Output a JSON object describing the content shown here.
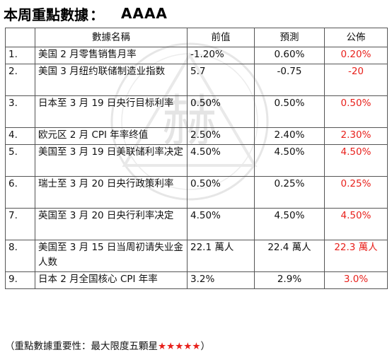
{
  "header": {
    "title": "本周重點數據",
    "separator": "：",
    "rating": "AAAA"
  },
  "watermark": {
    "glyph": "赫"
  },
  "table": {
    "columns": [
      "數據名稱",
      "前值",
      "預測",
      "公佈"
    ],
    "rows": [
      {
        "num": "1.",
        "name": "美国 2 月零售销售月率",
        "prev": "-1.20%",
        "fcst": "0.60%",
        "act": "0.20%"
      },
      {
        "num": "2.",
        "name": "美国 3 月纽约联储制造业指数",
        "prev": "5.7",
        "fcst": "-0.75",
        "act": "-20"
      },
      {
        "num": "3.",
        "name": "日本至 3 月 19 日央行目标利率",
        "prev": "0.50%",
        "fcst": "0.50%",
        "act": "0.50%"
      },
      {
        "num": "4.",
        "name": "欧元区 2 月 CPI 年率终值",
        "prev": "2.50%",
        "fcst": "2.40%",
        "act": "2.30%"
      },
      {
        "num": "5.",
        "name": "美国至 3 月 19 日美联储利率决定",
        "prev": "4.50%",
        "fcst": "4.50%",
        "act": "4.50%"
      },
      {
        "num": "6.",
        "name": "瑞士至 3 月 20 日央行政策利率",
        "prev": "0.50%",
        "fcst": "0.25%",
        "act": "0.25%"
      },
      {
        "num": "7.",
        "name": "英国至 3 月 20 日央行利率决定",
        "prev": "4.50%",
        "fcst": "4.50%",
        "act": "4.50%"
      },
      {
        "num": "8.",
        "name": "美国至 3 月 15 日当周初请失业金人数",
        "prev": "22.1 萬人",
        "fcst": "22.4 萬人",
        "act": "22.3 萬人"
      },
      {
        "num": "9.",
        "name": "日本 2 月全国核心 CPI 年率",
        "prev": "3.2%",
        "fcst": "2.9%",
        "act": "3.0%"
      }
    ]
  },
  "note": {
    "prefix": "（重點數據重要性：最大限度五顆星",
    "stars": "★★★★★",
    "suffix": "）"
  },
  "colors": {
    "accent_red": "#e8211c"
  }
}
